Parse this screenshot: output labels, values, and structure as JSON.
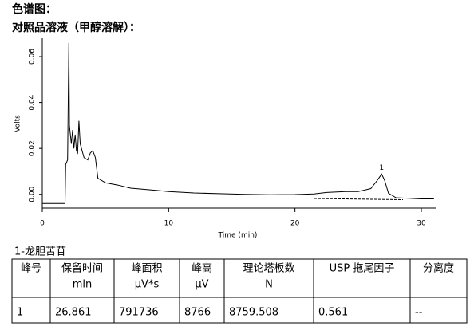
{
  "header": {
    "title": "色谱图：",
    "subtitle": "对照品溶液（甲醇溶解）："
  },
  "chart_data": {
    "type": "line",
    "color": "#000000",
    "ylabel": "Volts",
    "xlabel": "Time (min)",
    "x": [
      0,
      1.8,
      1.85,
      2.0,
      2.1,
      2.15,
      2.3,
      2.4,
      2.5,
      2.6,
      2.7,
      2.8,
      2.9,
      3.0,
      3.1,
      3.3,
      3.6,
      3.8,
      4.0,
      4.2,
      4.4,
      5,
      6,
      7,
      8,
      9,
      10,
      12,
      14,
      16,
      18,
      20,
      21.5,
      22.5,
      24,
      25,
      26,
      26.5,
      26.86,
      27.1,
      27.4,
      28,
      30,
      31
    ],
    "values": [
      -0.004,
      -0.004,
      0.013,
      0.015,
      0.066,
      0.03,
      0.022,
      0.028,
      0.02,
      0.026,
      0.019,
      0.018,
      0.032,
      0.022,
      0.02,
      0.016,
      0.015,
      0.018,
      0.019,
      0.016,
      0.007,
      0.005,
      0.004,
      0.0027,
      0.0022,
      0.0017,
      0.0012,
      0.0006,
      0.0003,
      0.0,
      -0.0002,
      -0.0001,
      0.0002,
      0.0008,
      0.0012,
      0.0012,
      0.0025,
      0.006,
      0.0088,
      0.006,
      0.0005,
      -0.0015,
      -0.002,
      -0.002
    ],
    "annotations": [
      {
        "text": "1"
      }
    ],
    "xlim": [
      0,
      31.2
    ],
    "ylim": [
      -0.006,
      0.068
    ],
    "xticks": [
      0,
      10,
      20,
      30
    ],
    "yticks": [
      {
        "value": 0,
        "label": "0.00"
      },
      {
        "value": 0.02,
        "label": "0.02"
      },
      {
        "value": 0.04,
        "label": "0.04"
      },
      {
        "value": 0.06,
        "label": "0.06"
      }
    ]
  },
  "caption": "1-龙胆苦苷",
  "table": {
    "header": [
      [
        "峰号"
      ],
      [
        "保留时间",
        "min"
      ],
      [
        "峰面积",
        "μV*s"
      ],
      [
        "峰高",
        "μV"
      ],
      [
        "理论塔板数",
        "N"
      ],
      [
        "USP 拖尾因子"
      ],
      [
        "分离度"
      ]
    ],
    "rows": [
      [
        "1",
        "26.861",
        "791736",
        "8766",
        "8759.508",
        "0.561",
        "--"
      ]
    ]
  }
}
